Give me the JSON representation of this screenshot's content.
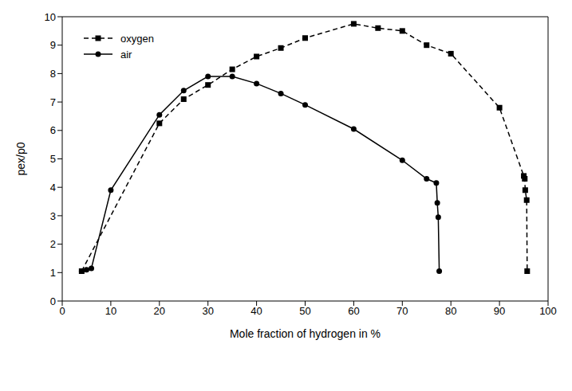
{
  "chart_data": {
    "type": "line",
    "x_label": "Mole fraction of hydrogen in %",
    "y_label": "pex/p0",
    "xlim": [
      0,
      100
    ],
    "xticks": [
      0,
      10,
      20,
      30,
      40,
      50,
      60,
      70,
      80,
      90,
      100
    ],
    "ylim": [
      0,
      10
    ],
    "yticks": [
      0,
      1,
      2,
      3,
      4,
      5,
      6,
      7,
      8,
      9,
      10
    ],
    "grid": false,
    "legend": "upper left",
    "series": [
      {
        "name": "oxygen",
        "color": "#000000",
        "marker": "square",
        "line_style": "dashed",
        "x": [
          4,
          20,
          25,
          30,
          35,
          40,
          45,
          50,
          60,
          65,
          70,
          75,
          80,
          90,
          95,
          95.2,
          95.3,
          95.6,
          95.7
        ],
        "values": [
          1.05,
          6.25,
          7.1,
          7.6,
          8.15,
          8.6,
          8.9,
          9.25,
          9.75,
          9.6,
          9.5,
          9.0,
          8.7,
          6.8,
          4.4,
          4.3,
          3.9,
          3.55,
          1.05
        ]
      },
      {
        "name": "air",
        "color": "#000000",
        "marker": "circle",
        "line_style": "solid",
        "x": [
          4,
          5,
          6,
          10,
          20,
          25,
          30,
          35,
          40,
          45,
          50,
          60,
          70,
          75,
          77,
          77.2,
          77.4,
          77.6
        ],
        "values": [
          1.05,
          1.1,
          1.15,
          3.9,
          6.55,
          7.4,
          7.9,
          7.9,
          7.65,
          7.3,
          6.9,
          6.05,
          4.95,
          4.3,
          4.15,
          3.45,
          2.95,
          1.05
        ]
      }
    ]
  }
}
